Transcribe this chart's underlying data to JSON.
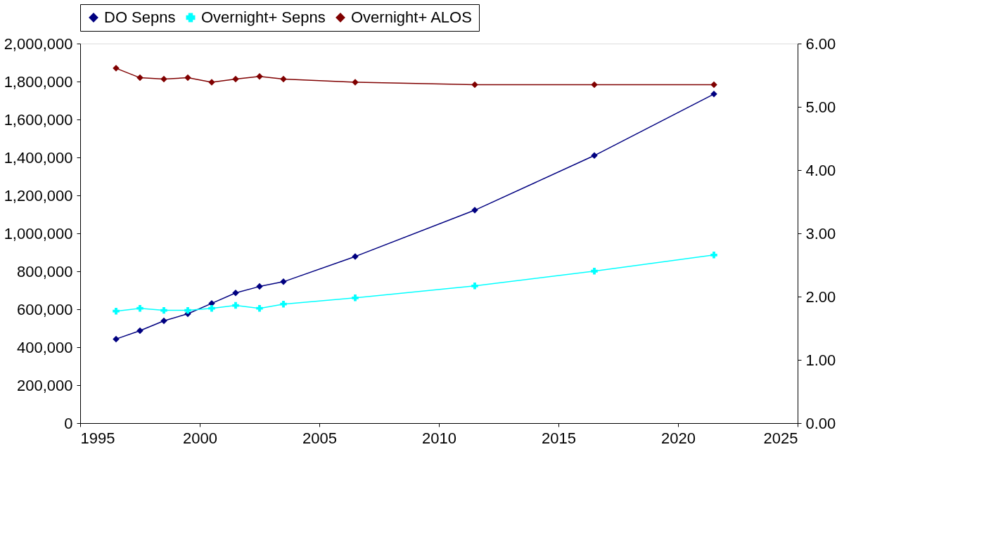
{
  "chart_data": {
    "type": "line",
    "x": [
      1996.5,
      1997.5,
      1998.5,
      1999.5,
      2000.5,
      2001.5,
      2002.5,
      2003.5,
      2006.5,
      2011.5,
      2016.5,
      2021.5
    ],
    "series": [
      {
        "name": "DO Sepns",
        "color": "#000080",
        "marker": "diamond",
        "values": [
          443000,
          487000,
          539000,
          576000,
          631000,
          686000,
          720000,
          745000,
          878000,
          1122000,
          1410000,
          1734000
        ]
      },
      {
        "name": "Overnight+ Sepns",
        "color": "#00ffff",
        "marker": "cross",
        "values": [
          590000,
          605000,
          594000,
          594000,
          605000,
          620000,
          605000,
          627000,
          660000,
          723000,
          801000,
          886000
        ]
      },
      {
        "name": "Overnight+ ALOS",
        "color": "#800000",
        "marker": "diamond",
        "axis": "y2",
        "values": [
          5.61,
          5.46,
          5.44,
          5.46,
          5.39,
          5.44,
          5.48,
          5.44,
          5.39,
          5.35,
          5.35,
          5.35
        ]
      }
    ],
    "xlim": [
      1995,
      2025
    ],
    "xticks": [
      1995,
      2000,
      2005,
      2010,
      2015,
      2020,
      2025
    ],
    "ylim": [
      0,
      2000000
    ],
    "yticks": [
      {
        "value": 0,
        "label": "0"
      },
      {
        "value": 200000,
        "label": "200,000"
      },
      {
        "value": 400000,
        "label": "400,000"
      },
      {
        "value": 600000,
        "label": "600,000"
      },
      {
        "value": 800000,
        "label": "800,000"
      },
      {
        "value": 1000000,
        "label": "1,000,000"
      },
      {
        "value": 1200000,
        "label": "1,200,000"
      },
      {
        "value": 1400000,
        "label": "1,400,000"
      },
      {
        "value": 1600000,
        "label": "1,600,000"
      },
      {
        "value": 1800000,
        "label": "1,800,000"
      },
      {
        "value": 2000000,
        "label": "2,000,000"
      }
    ],
    "y2lim": [
      0,
      6
    ],
    "y2ticks": [
      {
        "value": 0,
        "label": "0.00"
      },
      {
        "value": 1,
        "label": "1.00"
      },
      {
        "value": 2,
        "label": "2.00"
      },
      {
        "value": 3,
        "label": "3.00"
      },
      {
        "value": 4,
        "label": "4.00"
      },
      {
        "value": 5,
        "label": "5.00"
      },
      {
        "value": 6,
        "label": "6.00"
      }
    ],
    "grid": false,
    "legend": "top",
    "line_style": "solid"
  }
}
